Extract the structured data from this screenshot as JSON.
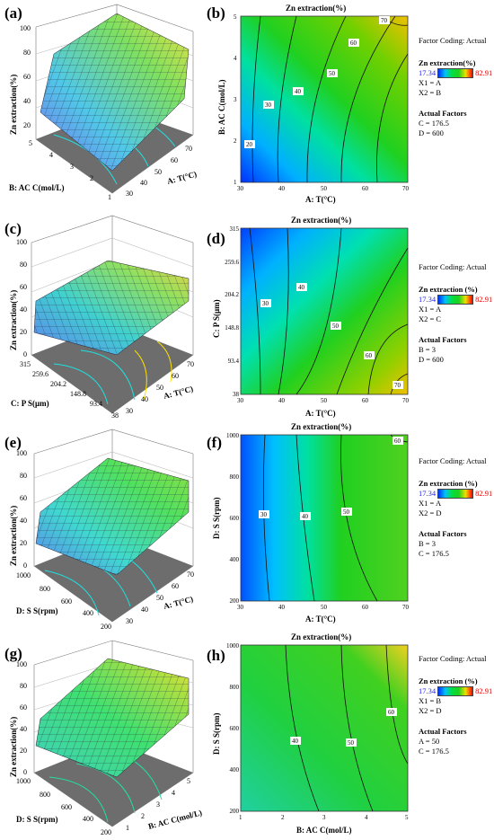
{
  "colors": {
    "min_value": "#2020ff",
    "max_value": "#e00000"
  },
  "panels": [
    {
      "label": "(a)",
      "surface_zlabel": "Zn extraction(%)",
      "surface_z_ticks": [
        "20",
        "40",
        "60",
        "80",
        "100"
      ],
      "surface_y_label": "B: AC C(mol/L)",
      "surface_y_ticks": [
        "5",
        "4",
        "3",
        "2",
        "1"
      ],
      "surface_x_label": "A: T(°C)",
      "surface_x_ticks": [
        "30",
        "40",
        "50",
        "60",
        "70"
      ]
    },
    {
      "label": "(c)",
      "surface_zlabel": "Zn extraction(%)",
      "surface_z_ticks": [
        "0",
        "20",
        "40",
        "60",
        "80",
        "100"
      ],
      "surface_y_label": "C: P S(μm)",
      "surface_y_ticks": [
        "315",
        "259.6",
        "204.2",
        "148.8",
        "93.4",
        "38"
      ],
      "surface_x_label": "A: T(°C)",
      "surface_x_ticks": [
        "30",
        "40",
        "50",
        "60",
        "70"
      ]
    },
    {
      "label": "(e)",
      "surface_zlabel": "Zn extraction(%)",
      "surface_z_ticks": [
        "0",
        "20",
        "40",
        "60",
        "80",
        "100"
      ],
      "surface_y_label": "D: S S(rpm)",
      "surface_y_ticks": [
        "1000",
        "800",
        "600",
        "400",
        "200"
      ],
      "surface_x_label": "A: T(°C)",
      "surface_x_ticks": [
        "30",
        "40",
        "50",
        "60",
        "70"
      ]
    },
    {
      "label": "(g)",
      "surface_zlabel": "Zn extraction(%)",
      "surface_z_ticks": [
        "0",
        "20",
        "40",
        "60",
        "80",
        "100"
      ],
      "surface_y_label": "D: S S(rpm)",
      "surface_y_ticks": [
        "1000",
        "800",
        "600",
        "400",
        "200"
      ],
      "surface_x_label": "B: AC C(mol/L)",
      "surface_x_ticks": [
        "1",
        "2",
        "3",
        "4",
        "5"
      ]
    }
  ],
  "contours": [
    {
      "label": "(b)",
      "title": "Zn extraction(%)",
      "xlabel": "A: T(°C)",
      "ylabel": "B: AC C(mol/L)",
      "x_ticks": [
        "30",
        "40",
        "50",
        "60",
        "70"
      ],
      "y_ticks": [
        "1",
        "2",
        "3",
        "4",
        "5"
      ],
      "levels": [
        "20",
        "30",
        "40",
        "50",
        "60",
        "70"
      ],
      "info": {
        "coding": "Factor Coding: Actual",
        "resp": "Zn extraction(%)",
        "min": "17.34",
        "max": "82.91",
        "x1": "X1 = A",
        "x2": "X2 = B",
        "actual": "Actual Factors",
        "f1": "C = 176.5",
        "f2": "D = 600"
      }
    },
    {
      "label": "(d)",
      "title": "Zn extraction(%)",
      "xlabel": "A: T(°C)",
      "ylabel": "C: P S(μm)",
      "x_ticks": [
        "30",
        "40",
        "50",
        "60",
        "70"
      ],
      "y_ticks": [
        "38",
        "93.4",
        "148.8",
        "204.2",
        "259.6",
        "315"
      ],
      "levels": [
        "30",
        "40",
        "50",
        "60",
        "70"
      ],
      "info": {
        "coding": "Factor Coding: Actual",
        "resp": "Zn extraction (%)",
        "min": "17.34",
        "max": "82.91",
        "x1": "X1 = A",
        "x2": "X2 = C",
        "actual": "Actual Factors",
        "f1": "B = 3",
        "f2": "D = 600"
      }
    },
    {
      "label": "(f)",
      "title": "Zn extraction(%)",
      "xlabel": "A: T(°C)",
      "ylabel": "D: S S(rpm)",
      "x_ticks": [
        "30",
        "40",
        "50",
        "60",
        "70"
      ],
      "y_ticks": [
        "200",
        "400",
        "600",
        "800",
        "1000"
      ],
      "levels": [
        "30",
        "40",
        "50",
        "60"
      ],
      "info": {
        "coding": "Factor Coding: Actual",
        "resp": "Zn extraction (%)",
        "min": "17.34",
        "max": "82.91",
        "x1": "X1 = A",
        "x2": "X2 = D",
        "actual": "Actual Factors",
        "f1": "B = 3",
        "f2": "C = 176.5"
      }
    },
    {
      "label": "(h)",
      "title": "Zn extraction(%)",
      "xlabel": "B: AC C(mol/L)",
      "ylabel": "D: S S(rpm)",
      "x_ticks": [
        "1",
        "2",
        "3",
        "4",
        "5"
      ],
      "y_ticks": [
        "200",
        "400",
        "600",
        "800",
        "1000"
      ],
      "levels": [
        "40",
        "50",
        "60"
      ],
      "info": {
        "coding": "Factor Coding: Actual",
        "resp": "Zn extraction (%)",
        "min": "17.34",
        "max": "82.91",
        "x1": "X1 = B",
        "x2": "X2 = D",
        "actual": "Actual Factors",
        "f1": "A = 50",
        "f2": "C = 176.5"
      }
    }
  ],
  "chart_data": [
    {
      "type": "heatmap",
      "title": "Zn extraction(%)",
      "xlabel": "A: T(°C)",
      "ylabel": "B: AC C(mol/L)",
      "xlim": [
        30,
        70
      ],
      "ylim": [
        1,
        5
      ],
      "contour_levels": [
        20,
        30,
        40,
        50,
        60,
        70
      ],
      "colorbar_range": [
        17.34,
        82.91
      ],
      "fixed_factors": {
        "C": 176.5,
        "D": 600
      }
    },
    {
      "type": "heatmap",
      "title": "Zn extraction(%)",
      "xlabel": "A: T(°C)",
      "ylabel": "C: P S(μm)",
      "xlim": [
        30,
        70
      ],
      "ylim": [
        38,
        315
      ],
      "contour_levels": [
        30,
        40,
        50,
        60,
        70
      ],
      "colorbar_range": [
        17.34,
        82.91
      ],
      "fixed_factors": {
        "B": 3,
        "D": 600
      }
    },
    {
      "type": "heatmap",
      "title": "Zn extraction(%)",
      "xlabel": "A: T(°C)",
      "ylabel": "D: S S(rpm)",
      "xlim": [
        30,
        70
      ],
      "ylim": [
        200,
        1000
      ],
      "contour_levels": [
        30,
        40,
        50,
        60
      ],
      "colorbar_range": [
        17.34,
        82.91
      ],
      "fixed_factors": {
        "B": 3,
        "C": 176.5
      }
    },
    {
      "type": "heatmap",
      "title": "Zn extraction(%)",
      "xlabel": "B: AC C(mol/L)",
      "ylabel": "D: S S(rpm)",
      "xlim": [
        1,
        5
      ],
      "ylim": [
        200,
        1000
      ],
      "contour_levels": [
        40,
        50,
        60
      ],
      "colorbar_range": [
        17.34,
        82.91
      ],
      "fixed_factors": {
        "A": 50,
        "C": 176.5
      }
    }
  ]
}
